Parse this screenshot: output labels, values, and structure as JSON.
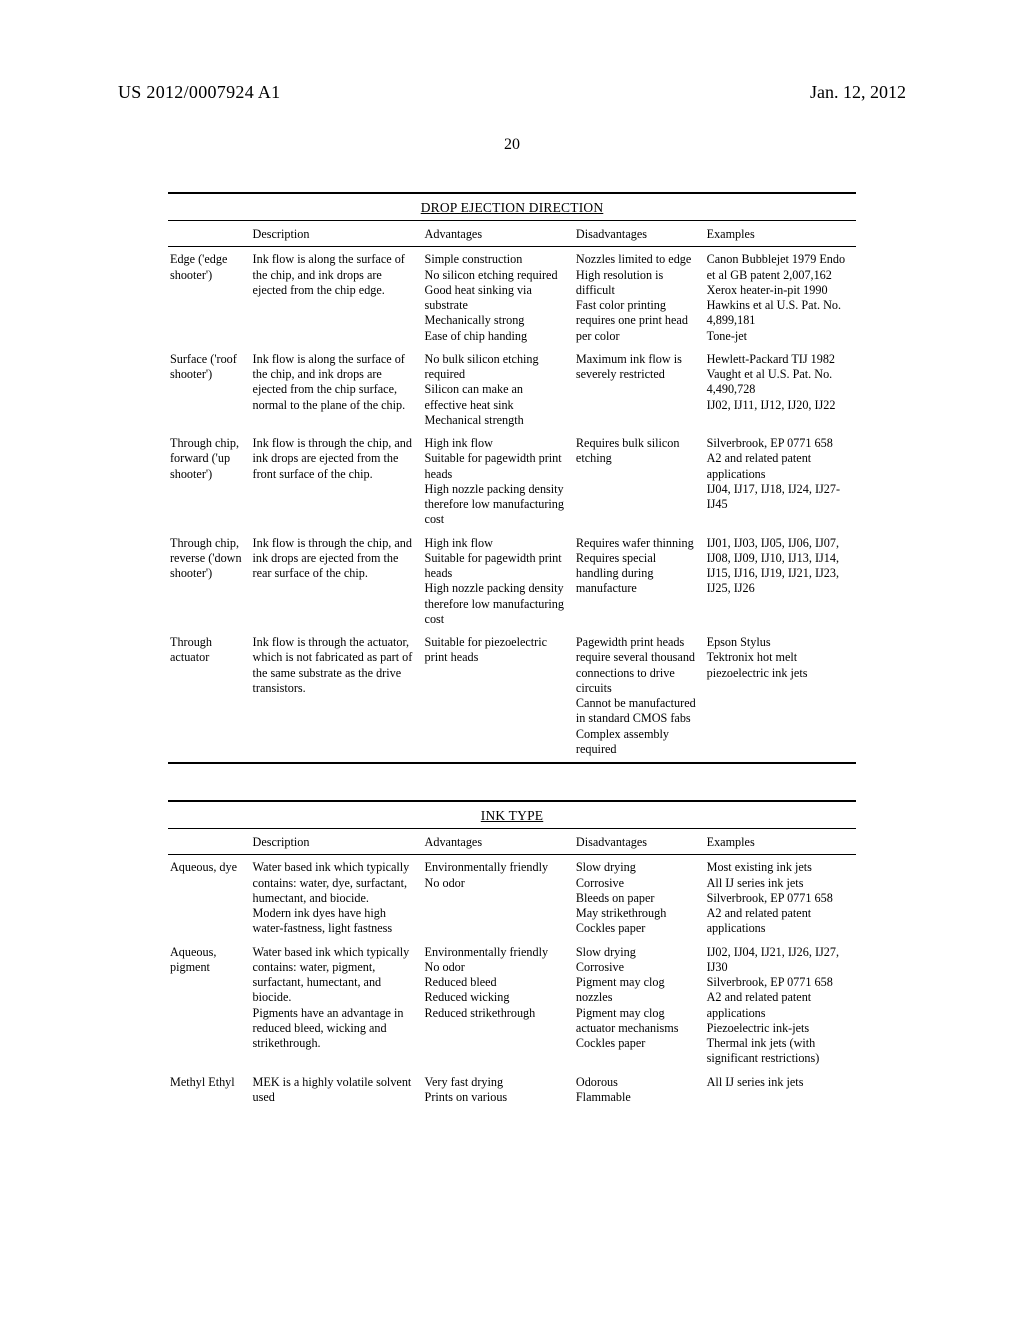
{
  "publication_number": "US 2012/0007924 A1",
  "publication_date": "Jan. 12, 2012",
  "page_number": "20",
  "table1": {
    "title": "DROP EJECTION DIRECTION",
    "headers": [
      "",
      "Description",
      "Advantages",
      "Disadvantages",
      "Examples"
    ],
    "rows": [
      {
        "name": "Edge ('edge shooter')",
        "description": "Ink flow is along the surface of the chip, and ink drops are ejected from the chip edge.",
        "advantages": "Simple construction\nNo silicon etching required\nGood heat sinking via substrate\nMechanically strong\nEase of chip handing",
        "disadvantages": "Nozzles limited to edge\nHigh resolution is difficult\nFast color printing requires one print head per color",
        "examples": "Canon Bubblejet 1979 Endo et al GB patent 2,007,162\nXerox heater-in-pit 1990 Hawkins et al U.S. Pat. No. 4,899,181\nTone-jet"
      },
      {
        "name": "Surface ('roof shooter')",
        "description": "Ink flow is along the surface of the chip, and ink drops are ejected from the chip surface, normal to the plane of the chip.",
        "advantages": "No bulk silicon etching required\nSilicon can make an effective heat sink\nMechanical strength",
        "disadvantages": "Maximum ink flow is severely restricted",
        "examples": "Hewlett-Packard TIJ 1982 Vaught et al U.S. Pat. No. 4,490,728\nIJ02, IJ11, IJ12, IJ20, IJ22"
      },
      {
        "name": "Through chip, forward ('up shooter')",
        "description": "Ink flow is through the chip, and ink drops are ejected from the front surface of the chip.",
        "advantages": "High ink flow\nSuitable for pagewidth print heads\nHigh nozzle packing density therefore low manufacturing cost",
        "disadvantages": "Requires bulk silicon etching",
        "examples": "Silverbrook, EP 0771 658 A2 and related patent applications\nIJ04, IJ17, IJ18, IJ24, IJ27-IJ45"
      },
      {
        "name": "Through chip, reverse ('down shooter')",
        "description": "Ink flow is through the chip, and ink drops are ejected from the rear surface of the chip.",
        "advantages": "High ink flow\nSuitable for pagewidth print heads\nHigh nozzle packing density therefore low manufacturing cost",
        "disadvantages": "Requires wafer thinning\nRequires special handling during manufacture",
        "examples": "IJ01, IJ03, IJ05, IJ06, IJ07, IJ08, IJ09, IJ10, IJ13, IJ14, IJ15, IJ16, IJ19, IJ21, IJ23, IJ25, IJ26"
      },
      {
        "name": "Through actuator",
        "description": "Ink flow is through the actuator, which is not fabricated as part of the same substrate as the drive transistors.",
        "advantages": "Suitable for piezoelectric print heads",
        "disadvantages": "Pagewidth print heads require several thousand connections to drive circuits\nCannot be manufactured in standard CMOS fabs\nComplex assembly required",
        "examples": "Epson Stylus\nTektronix hot melt piezoelectric ink jets"
      }
    ]
  },
  "table2": {
    "title": "INK TYPE",
    "headers": [
      "",
      "Description",
      "Advantages",
      "Disadvantages",
      "Examples"
    ],
    "rows": [
      {
        "name": "Aqueous, dye",
        "description": "Water based ink which typically contains: water, dye, surfactant, humectant, and biocide.\nModern ink dyes have high water-fastness, light fastness",
        "advantages": "Environmentally friendly\nNo odor",
        "disadvantages": "Slow drying\nCorrosive\nBleeds on paper\nMay strikethrough\nCockles paper",
        "examples": "Most existing ink jets\nAll IJ series ink jets\nSilverbrook, EP 0771 658 A2 and related patent applications"
      },
      {
        "name": "Aqueous, pigment",
        "description": "Water based ink which typically contains: water, pigment, surfactant, humectant, and biocide.\nPigments have an advantage in reduced bleed, wicking and strikethrough.",
        "advantages": "Environmentally friendly\nNo odor\nReduced bleed\nReduced wicking\nReduced strikethrough",
        "disadvantages": "Slow drying\nCorrosive\nPigment may clog nozzles\nPigment may clog actuator mechanisms\nCockles paper",
        "examples": "IJ02, IJ04, IJ21, IJ26, IJ27, IJ30\nSilverbrook, EP 0771 658 A2 and related patent applications\nPiezoelectric ink-jets\nThermal ink jets (with significant restrictions)"
      },
      {
        "name": "Methyl Ethyl",
        "description": "MEK is a highly volatile solvent used",
        "advantages": "Very fast drying\nPrints on various",
        "disadvantages": "Odorous\nFlammable",
        "examples": "All IJ series ink jets"
      }
    ]
  }
}
